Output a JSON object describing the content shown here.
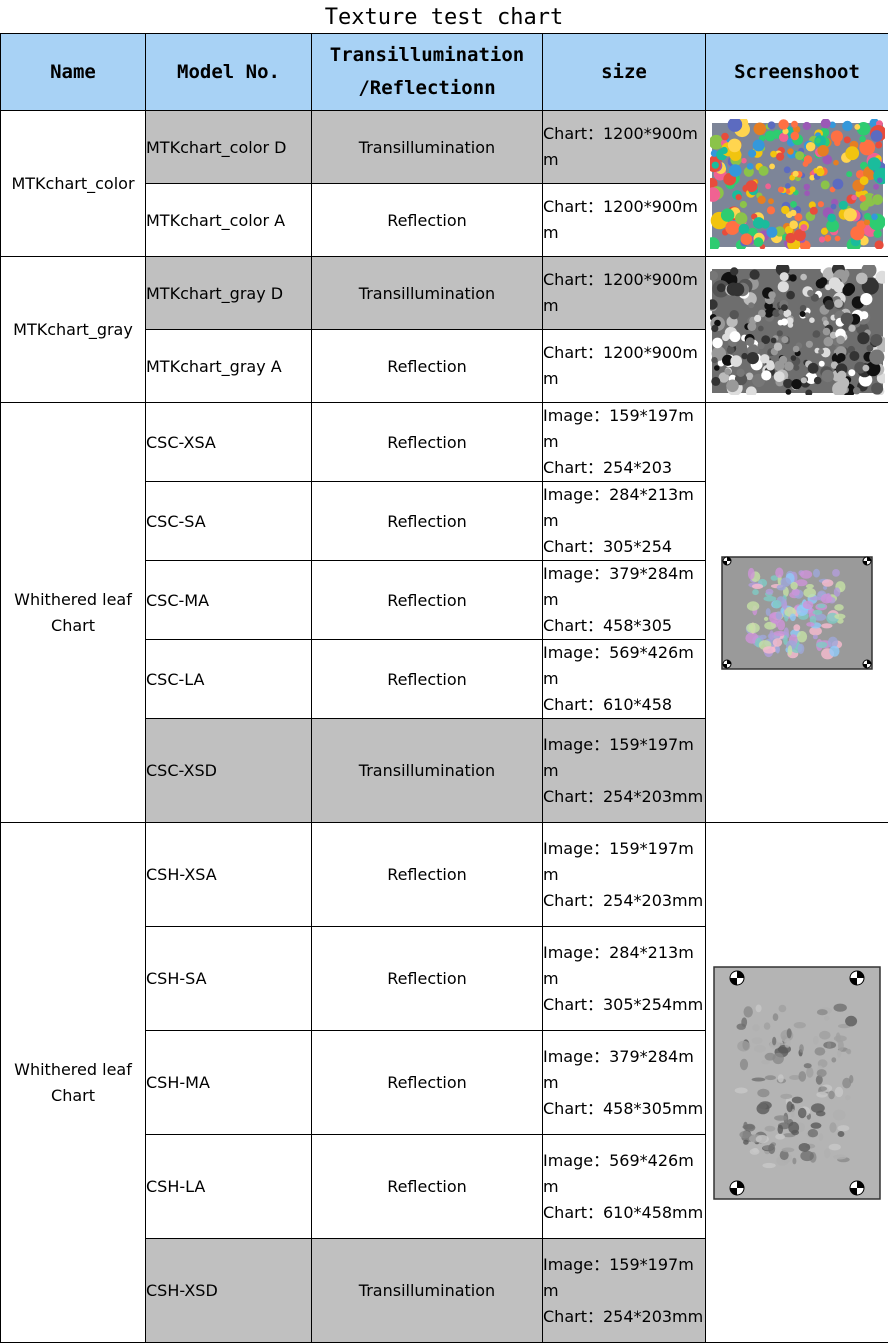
{
  "title": "Texture test chart",
  "headers": {
    "name": "Name",
    "model": "Model No.",
    "mode": "Transillumination /Reflectionn",
    "size": "size",
    "screenshot": "Screenshoot"
  },
  "groups": [
    {
      "name": "MTKchart_color",
      "screenshot_icon": "colorful-dot-chart-thumbnail",
      "rows": [
        {
          "model": "MTKchart_color D",
          "mode": "Transillumination",
          "size": "Chart：1200*900mm",
          "shaded": true
        },
        {
          "model": "MTKchart_color A",
          "mode": "Reflection",
          "size": "Chart：1200*900mm",
          "shaded": false
        }
      ]
    },
    {
      "name": "MTKchart_gray",
      "screenshot_icon": "gray-dot-chart-thumbnail",
      "rows": [
        {
          "model": "MTKchart_gray D",
          "mode": "Transillumination",
          "size": "Chart：1200*900mm",
          "shaded": true
        },
        {
          "model": "MTKchart_gray A",
          "mode": "Reflection",
          "size": "Chart：1200*900mm",
          "shaded": false
        }
      ]
    },
    {
      "name": "Whithered leaf Chart",
      "screenshot_icon": "color-leaf-chart-thumbnail",
      "rows": [
        {
          "model": "CSC-XSA",
          "mode": "Reflection",
          "size": "Image：159*197mm\nChart：254*203",
          "shaded": false
        },
        {
          "model": "CSC-SA",
          "mode": "Reflection",
          "size": "Image：284*213mm\nChart：305*254",
          "shaded": false
        },
        {
          "model": "CSC-MA",
          "mode": "Reflection",
          "size": "Image：379*284mm\nChart：458*305",
          "shaded": false
        },
        {
          "model": "CSC-LA",
          "mode": "Reflection",
          "size": "Image：569*426mm\nChart：610*458",
          "shaded": false
        },
        {
          "model": "CSC-XSD",
          "mode": "Transillumination",
          "size": "Image：159*197mm\nChart：254*203mm",
          "shaded": true
        }
      ]
    },
    {
      "name": "Whithered leaf Chart",
      "screenshot_icon": "gray-leaf-chart-thumbnail",
      "rows": [
        {
          "model": "CSH-XSA",
          "mode": "Reflection",
          "size": "Image：159*197mm\nChart：254*203mm",
          "shaded": false
        },
        {
          "model": "CSH-SA",
          "mode": "Reflection",
          "size": "Image：284*213mm\nChart：305*254mm",
          "shaded": false
        },
        {
          "model": "CSH-MA",
          "mode": "Reflection",
          "size": "Image：379*284mm\nChart：458*305mm",
          "shaded": false
        },
        {
          "model": "CSH-LA",
          "mode": "Reflection",
          "size": "Image：569*426mm\nChart：610*458mm",
          "shaded": false
        },
        {
          "model": "CSH-XSD",
          "mode": "Transillumination",
          "size": "Image：159*197mm\nChart：254*203mm",
          "shaded": true
        }
      ]
    }
  ]
}
